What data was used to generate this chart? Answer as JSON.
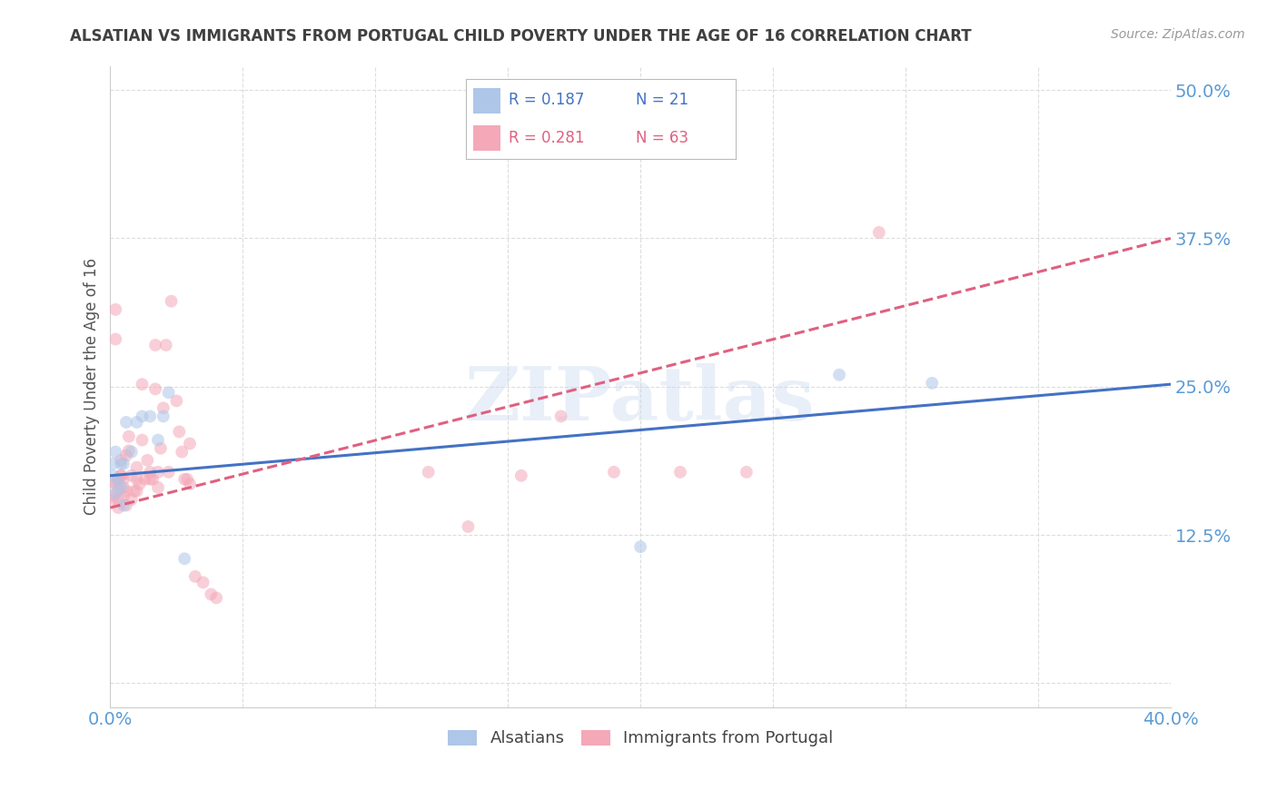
{
  "title": "ALSATIAN VS IMMIGRANTS FROM PORTUGAL CHILD POVERTY UNDER THE AGE OF 16 CORRELATION CHART",
  "source": "Source: ZipAtlas.com",
  "ylabel": "Child Poverty Under the Age of 16",
  "xlabel": "",
  "xlim": [
    0.0,
    0.4
  ],
  "ylim": [
    -0.02,
    0.52
  ],
  "ytick_positions": [
    0.0,
    0.125,
    0.25,
    0.375,
    0.5
  ],
  "yticklabels": [
    "",
    "12.5%",
    "25.0%",
    "37.5%",
    "50.0%"
  ],
  "grid_color": "#dddddd",
  "background_color": "#ffffff",
  "watermark": "ZIPatlas",
  "series1_label": "Alsatians",
  "series2_label": "Immigrants from Portugal",
  "series1_color": "#aec6e8",
  "series2_color": "#f4a8b8",
  "series1_line_color": "#4472c4",
  "series2_line_color": "#e06080",
  "series1_R": "0.187",
  "series1_N": "21",
  "series2_R": "0.281",
  "series2_N": "63",
  "title_color": "#404040",
  "axis_color": "#5b9bd5",
  "series1_x": [
    0.001,
    0.001,
    0.002,
    0.002,
    0.003,
    0.004,
    0.004,
    0.005,
    0.005,
    0.006,
    0.008,
    0.01,
    0.012,
    0.015,
    0.018,
    0.02,
    0.022,
    0.028,
    0.2,
    0.275,
    0.31
  ],
  "series1_y": [
    0.175,
    0.185,
    0.16,
    0.195,
    0.17,
    0.165,
    0.185,
    0.15,
    0.185,
    0.22,
    0.195,
    0.22,
    0.225,
    0.225,
    0.205,
    0.225,
    0.245,
    0.105,
    0.115,
    0.26,
    0.253
  ],
  "series2_x": [
    0.001,
    0.001,
    0.001,
    0.002,
    0.002,
    0.002,
    0.003,
    0.003,
    0.003,
    0.003,
    0.004,
    0.004,
    0.004,
    0.005,
    0.005,
    0.005,
    0.006,
    0.006,
    0.006,
    0.007,
    0.007,
    0.008,
    0.008,
    0.009,
    0.01,
    0.01,
    0.01,
    0.011,
    0.012,
    0.012,
    0.013,
    0.014,
    0.015,
    0.015,
    0.016,
    0.017,
    0.017,
    0.018,
    0.018,
    0.019,
    0.02,
    0.021,
    0.022,
    0.023,
    0.025,
    0.026,
    0.027,
    0.028,
    0.029,
    0.03,
    0.03,
    0.032,
    0.035,
    0.038,
    0.04,
    0.12,
    0.135,
    0.155,
    0.17,
    0.19,
    0.215,
    0.24,
    0.29
  ],
  "series2_y": [
    0.17,
    0.158,
    0.155,
    0.315,
    0.29,
    0.168,
    0.172,
    0.163,
    0.155,
    0.148,
    0.175,
    0.188,
    0.175,
    0.172,
    0.165,
    0.158,
    0.192,
    0.162,
    0.15,
    0.208,
    0.196,
    0.175,
    0.155,
    0.162,
    0.182,
    0.172,
    0.162,
    0.168,
    0.252,
    0.205,
    0.172,
    0.188,
    0.178,
    0.172,
    0.172,
    0.285,
    0.248,
    0.178,
    0.165,
    0.198,
    0.232,
    0.285,
    0.178,
    0.322,
    0.238,
    0.212,
    0.195,
    0.172,
    0.172,
    0.202,
    0.168,
    0.09,
    0.085,
    0.075,
    0.072,
    0.178,
    0.132,
    0.175,
    0.225,
    0.178,
    0.178,
    0.178,
    0.38
  ],
  "series1_line_x": [
    0.0,
    0.4
  ],
  "series1_line_y": [
    0.175,
    0.252
  ],
  "series2_line_x": [
    0.0,
    0.4
  ],
  "series2_line_y": [
    0.148,
    0.375
  ],
  "marker_size": 100,
  "marker_alpha": 0.55,
  "line_width": 2.2
}
